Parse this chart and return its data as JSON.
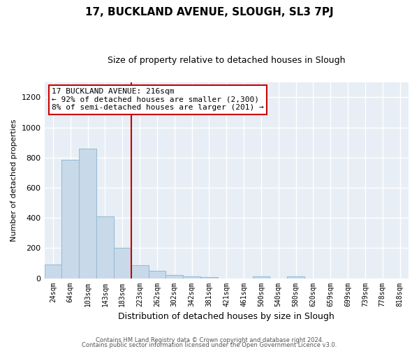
{
  "title": "17, BUCKLAND AVENUE, SLOUGH, SL3 7PJ",
  "subtitle": "Size of property relative to detached houses in Slough",
  "xlabel": "Distribution of detached houses by size in Slough",
  "ylabel": "Number of detached properties",
  "bar_labels": [
    "24sqm",
    "64sqm",
    "103sqm",
    "143sqm",
    "183sqm",
    "223sqm",
    "262sqm",
    "302sqm",
    "342sqm",
    "381sqm",
    "421sqm",
    "461sqm",
    "500sqm",
    "540sqm",
    "580sqm",
    "620sqm",
    "659sqm",
    "699sqm",
    "739sqm",
    "778sqm",
    "818sqm"
  ],
  "bar_values": [
    90,
    785,
    860,
    410,
    200,
    85,
    50,
    20,
    10,
    5,
    0,
    0,
    10,
    0,
    10,
    0,
    0,
    0,
    0,
    0,
    0
  ],
  "bar_color": "#c8daea",
  "bar_edge_color": "#9abcd4",
  "vline_x_idx": 5,
  "vline_color": "#cc0000",
  "ylim": [
    0,
    1300
  ],
  "yticks": [
    0,
    200,
    400,
    600,
    800,
    1000,
    1200
  ],
  "annotation_line1": "17 BUCKLAND AVENUE: 216sqm",
  "annotation_line2": "← 92% of detached houses are smaller (2,300)",
  "annotation_line3": "8% of semi-detached houses are larger (201) →",
  "annotation_box_color": "#ffffff",
  "annotation_box_edge": "#cc0000",
  "footer1": "Contains HM Land Registry data © Crown copyright and database right 2024.",
  "footer2": "Contains public sector information licensed under the Open Government Licence v3.0.",
  "background_color": "#ffffff",
  "plot_bg_color": "#e8eef5",
  "grid_color": "#ffffff",
  "title_fontsize": 11,
  "subtitle_fontsize": 9,
  "ylabel_fontsize": 8,
  "xlabel_fontsize": 9
}
